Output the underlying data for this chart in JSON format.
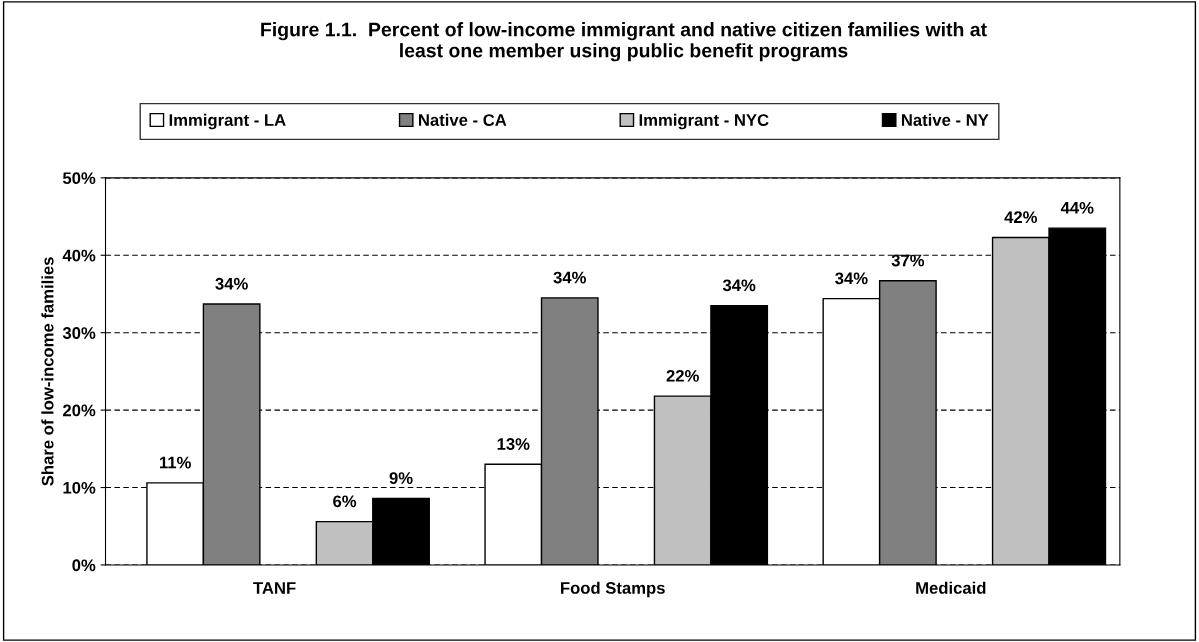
{
  "chart_data": {
    "type": "bar",
    "title": "Figure 1.1.  Percent of low-income immigrant and native citizen families with at\nleast one member using public benefit programs",
    "ylabel": "Share of low-income families",
    "categories": [
      "TANF",
      "Food Stamps",
      "Medicaid"
    ],
    "series": [
      {
        "name": "Immigrant - LA",
        "color": "#ffffff",
        "values": [
          10.6,
          13.0,
          34.4
        ],
        "value_labels": [
          "11%",
          "13%",
          "34%"
        ]
      },
      {
        "name": "Native - CA",
        "color": "#808080",
        "values": [
          33.7,
          34.5,
          36.7
        ],
        "value_labels": [
          "34%",
          "34%",
          "37%"
        ]
      },
      {
        "name": "Immigrant - NYC",
        "color": "#c0c0c0",
        "values": [
          5.6,
          21.8,
          42.3
        ],
        "value_labels": [
          "6%",
          "22%",
          "42%"
        ]
      },
      {
        "name": "Native - NY",
        "color": "#000000",
        "values": [
          8.6,
          33.5,
          43.5
        ],
        "value_labels": [
          "9%",
          "34%",
          "44%"
        ]
      }
    ],
    "ylim": [
      0,
      50
    ],
    "yticks": [
      {
        "value": 0,
        "label": "0%"
      },
      {
        "value": 10,
        "label": "10%"
      },
      {
        "value": 20,
        "label": "20%"
      },
      {
        "value": 30,
        "label": "30%"
      },
      {
        "value": 40,
        "label": "40%"
      },
      {
        "value": 50,
        "label": "50%"
      }
    ],
    "grid": "y",
    "legend": "top"
  }
}
